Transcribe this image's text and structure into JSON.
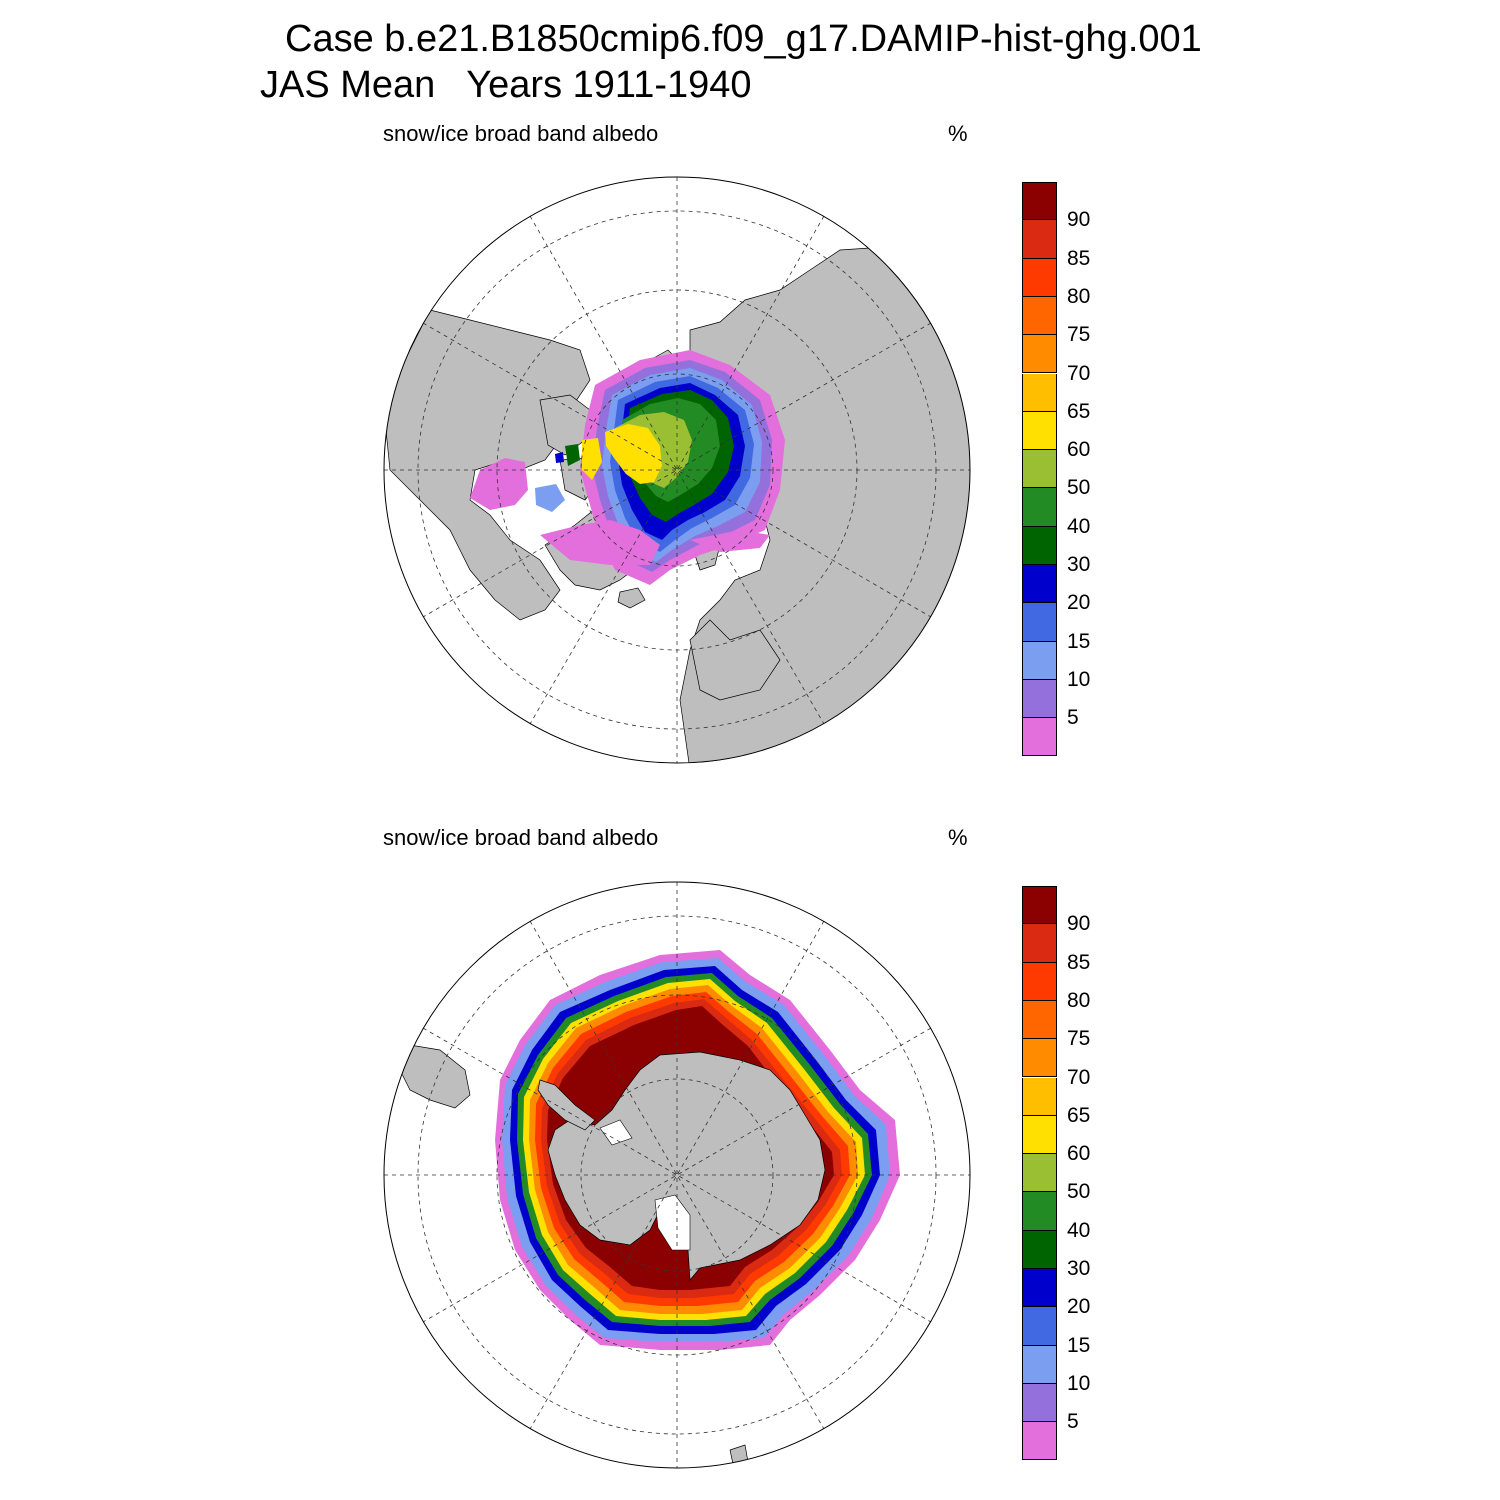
{
  "header": {
    "line1": "Case b.e21.B1850cmip6.f09_g17.DAMIP-hist-ghg.001",
    "line2": "JAS Mean   Years 1911-1940"
  },
  "panels": [
    {
      "title": "snow/ice broad band albedo",
      "units": "%",
      "hemisphere": "north"
    },
    {
      "title": "snow/ice broad band albedo",
      "units": "%",
      "hemisphere": "south"
    }
  ],
  "colorbar": {
    "labels": [
      "90",
      "85",
      "80",
      "75",
      "70",
      "65",
      "60",
      "50",
      "40",
      "30",
      "20",
      "15",
      "10",
      "5"
    ],
    "colors": [
      "#8B0000",
      "#DA2B12",
      "#FF3A00",
      "#FF6600",
      "#FF8C00",
      "#FFBF00",
      "#FFE000",
      "#9BBF32",
      "#238B23",
      "#006400",
      "#0000CD",
      "#4169E1",
      "#7B9EF0",
      "#9370DB",
      "#E36FDD"
    ]
  },
  "colors": {
    "land": "#BEBEBE",
    "ocean": "#FFFFFF"
  }
}
